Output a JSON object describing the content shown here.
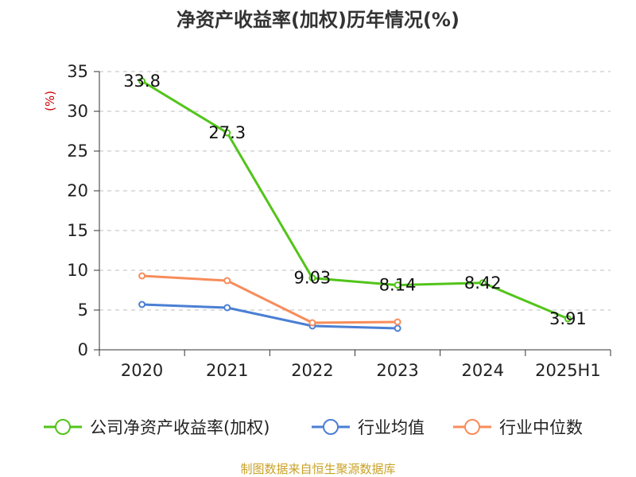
{
  "title": "净资产收益率(加权)历年情况(%)",
  "source": "制图数据来自恒生聚源数据库",
  "chart_data": {
    "type": "line",
    "title": "净资产收益率(加权)历年情况(%)",
    "ylabel": "(%)",
    "xlabel": "",
    "categories": [
      "2020",
      "2021",
      "2022",
      "2023",
      "2024",
      "2025H1"
    ],
    "ylim": [
      0,
      35
    ],
    "yticks": [
      0,
      5,
      10,
      15,
      20,
      25,
      30,
      35
    ],
    "grid": "horizontal dashed",
    "legend_position": "bottom",
    "series": [
      {
        "name": "公司净资产收益率(加权)",
        "color": "#52c41a",
        "values": [
          33.8,
          27.3,
          9.03,
          8.14,
          8.42,
          3.91
        ],
        "labels": [
          "33.8",
          "27.3",
          "9.03",
          "8.14",
          "8.42",
          "3.91"
        ]
      },
      {
        "name": "行业均值",
        "color": "#4a7fd4",
        "values": [
          5.7,
          5.3,
          3.0,
          2.7,
          null,
          null
        ]
      },
      {
        "name": "行业中位数",
        "color": "#f78c5a",
        "values": [
          9.3,
          8.7,
          3.4,
          3.5,
          null,
          null
        ]
      }
    ]
  }
}
